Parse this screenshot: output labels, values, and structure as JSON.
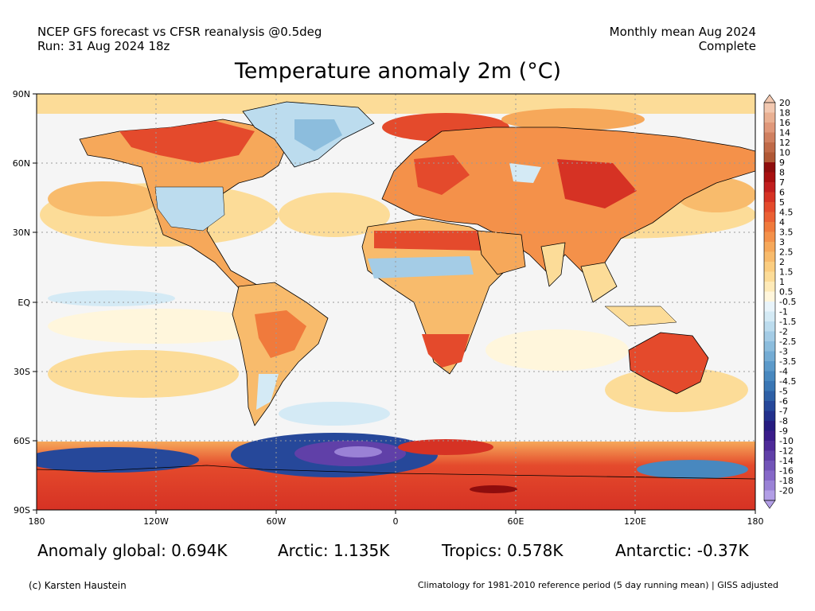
{
  "header": {
    "line1": "NCEP GFS forecast vs CFSR reanalysis @0.5deg",
    "line2": "Run: 31 Aug 2024 18z",
    "right1": "Monthly mean Aug 2024",
    "right2": "Complete"
  },
  "title": "Temperature anomaly 2m (°C)",
  "map": {
    "lat_labels": [
      "90N",
      "60N",
      "30N",
      "EQ",
      "30S",
      "60S",
      "90S"
    ],
    "lon_labels": [
      "180",
      "120W",
      "60W",
      "0",
      "60E",
      "120E",
      "180"
    ],
    "grid": "dotted"
  },
  "colorbar": {
    "labels": [
      "20",
      "18",
      "16",
      "14",
      "12",
      "10",
      "9",
      "8",
      "7",
      "6",
      "5",
      "4.5",
      "4",
      "3.5",
      "3",
      "2.5",
      "2",
      "1.5",
      "1",
      "0.5",
      "-0.5",
      "-1",
      "-1.5",
      "-2",
      "-2.5",
      "-3",
      "-3.5",
      "-4",
      "-4.5",
      "-5",
      "-6",
      "-7",
      "-8",
      "-9",
      "-10",
      "-12",
      "-14",
      "-16",
      "-18",
      "-20"
    ],
    "colors": [
      "#f2c8b0",
      "#e9b092",
      "#e0987a",
      "#d08060",
      "#c06a48",
      "#b05835",
      "#8e0d0d",
      "#a81010",
      "#c11e1e",
      "#d63224",
      "#e44a2c",
      "#eb6034",
      "#f07a3c",
      "#f4914a",
      "#f6a85a",
      "#f8bb6c",
      "#fbcd80",
      "#fcdc98",
      "#feeab8",
      "#fff6dc",
      "#e9f4fa",
      "#d4eaf5",
      "#bcdcee",
      "#a4cce6",
      "#8cbddd",
      "#74acd4",
      "#5c9aca",
      "#4888bf",
      "#3a76b4",
      "#2e60a6",
      "#26489a",
      "#22308c",
      "#261c80",
      "#3a1c8a",
      "#4e2a98",
      "#6040a8",
      "#7254b8",
      "#8668c8",
      "#9a82d6",
      "#b29ee6"
    ]
  },
  "stats": {
    "global": "Anomaly global: 0.694K",
    "arctic": "Arctic: 1.135K",
    "tropics": "Tropics: 0.578K",
    "antarctic": "Antarctic: -0.37K"
  },
  "footer": {
    "credit": "(c) Karsten Haustein",
    "climatology": "Climatology for 1981-2010 reference period (5 day running mean) | GISS adjusted"
  }
}
